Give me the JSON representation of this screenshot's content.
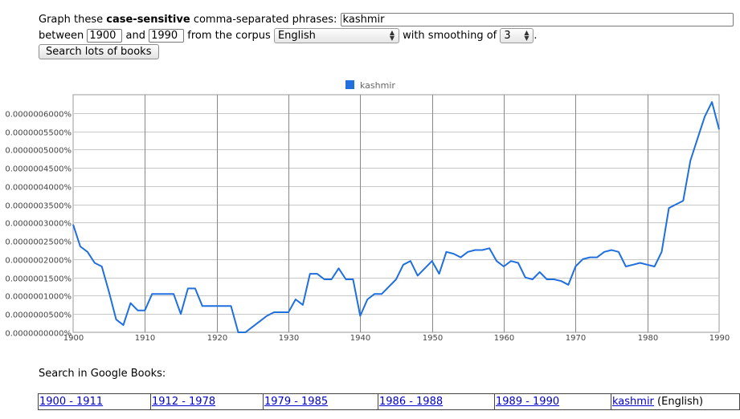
{
  "form": {
    "prefix": "Graph these",
    "bold": "case-sensitive",
    "suffix": "comma-separated phrases:",
    "phrase_value": "kashmir",
    "between_label": "between",
    "start_year": "1900",
    "and_label": "and",
    "end_year": "1990",
    "corpus_label": "from the corpus",
    "corpus_value": "English",
    "smoothing_label": "with smoothing of",
    "smoothing_value": "3",
    "period": ".",
    "search_button": "Search lots of books"
  },
  "chart_data": {
    "type": "line",
    "legend_position": "top",
    "grid": true,
    "xlim": [
      1900,
      1990
    ],
    "ylim": [
      0,
      6.5e-09
    ],
    "x_ticks": [
      "1900",
      "1910",
      "1920",
      "1930",
      "1940",
      "1950",
      "1960",
      "1970",
      "1980",
      "1990"
    ],
    "y_ticks": [
      "0.0000000000%",
      "0.0000000500%",
      "0.0000001000%",
      "0.0000001500%",
      "0.0000002000%",
      "0.0000002500%",
      "0.0000003000%",
      "0.0000003500%",
      "0.0000004000%",
      "0.0000004500%",
      "0.0000005000%",
      "0.0000005500%",
      "0.0000006000%"
    ],
    "series": [
      {
        "name": "kashmir",
        "color": "#1f6fdf",
        "x": [
          1900,
          1901,
          1902,
          1903,
          1904,
          1905,
          1906,
          1907,
          1908,
          1909,
          1910,
          1911,
          1912,
          1913,
          1914,
          1915,
          1916,
          1917,
          1918,
          1919,
          1920,
          1921,
          1922,
          1923,
          1924,
          1925,
          1926,
          1927,
          1928,
          1929,
          1930,
          1931,
          1932,
          1933,
          1934,
          1935,
          1936,
          1937,
          1938,
          1939,
          1940,
          1941,
          1942,
          1943,
          1944,
          1945,
          1946,
          1947,
          1948,
          1949,
          1950,
          1951,
          1952,
          1953,
          1954,
          1955,
          1956,
          1957,
          1958,
          1959,
          1960,
          1961,
          1962,
          1963,
          1964,
          1965,
          1966,
          1967,
          1968,
          1969,
          1970,
          1971,
          1972,
          1973,
          1974,
          1975,
          1976,
          1977,
          1978,
          1979,
          1980,
          1981,
          1982,
          1983,
          1984,
          1985,
          1986,
          1987,
          1988,
          1989,
          1990
        ],
        "y": [
          2.95e-09,
          2.35e-09,
          2.2e-09,
          1.9e-09,
          1.8e-09,
          1.1e-09,
          3.5e-10,
          2e-10,
          8e-10,
          6e-10,
          6e-10,
          1.05e-09,
          1.05e-09,
          1.05e-09,
          1.05e-09,
          5e-10,
          1.2e-09,
          1.2e-09,
          7.2e-10,
          7.2e-10,
          7.2e-10,
          7.2e-10,
          7.2e-10,
          0.0,
          0.0,
          1.5e-10,
          3e-10,
          4.5e-10,
          5.5e-10,
          5.5e-10,
          5.5e-10,
          9e-10,
          7.5e-10,
          1.6e-09,
          1.6e-09,
          1.45e-09,
          1.45e-09,
          1.75e-09,
          1.45e-09,
          1.45e-09,
          4.5e-10,
          9e-10,
          1.05e-09,
          1.05e-09,
          1.25e-09,
          1.45e-09,
          1.85e-09,
          1.95e-09,
          1.55e-09,
          1.75e-09,
          1.95e-09,
          1.6e-09,
          2.2e-09,
          2.15e-09,
          2.05e-09,
          2.2e-09,
          2.25e-09,
          2.25e-09,
          2.3e-09,
          1.95e-09,
          1.8e-09,
          1.95e-09,
          1.9e-09,
          1.5e-09,
          1.45e-09,
          1.65e-09,
          1.45e-09,
          1.45e-09,
          1.4e-09,
          1.3e-09,
          1.8e-09,
          2e-09,
          2.05e-09,
          2.05e-09,
          2.2e-09,
          2.25e-09,
          2.2e-09,
          1.8e-09,
          1.85e-09,
          1.9e-09,
          1.85e-09,
          1.8e-09,
          2.2e-09,
          3.4e-09,
          3.5e-09,
          3.6e-09,
          4.7e-09,
          5.3e-09,
          5.9e-09,
          6.3e-09,
          5.55e-09
        ]
      }
    ]
  },
  "google_books": {
    "label": "Search in Google Books:",
    "links": [
      "1900 - 1911",
      "1912 - 1978",
      "1979 - 1985",
      "1986 - 1988",
      "1989 - 1990"
    ],
    "phrase_link": "kashmir",
    "phrase_suffix": " (English)"
  }
}
